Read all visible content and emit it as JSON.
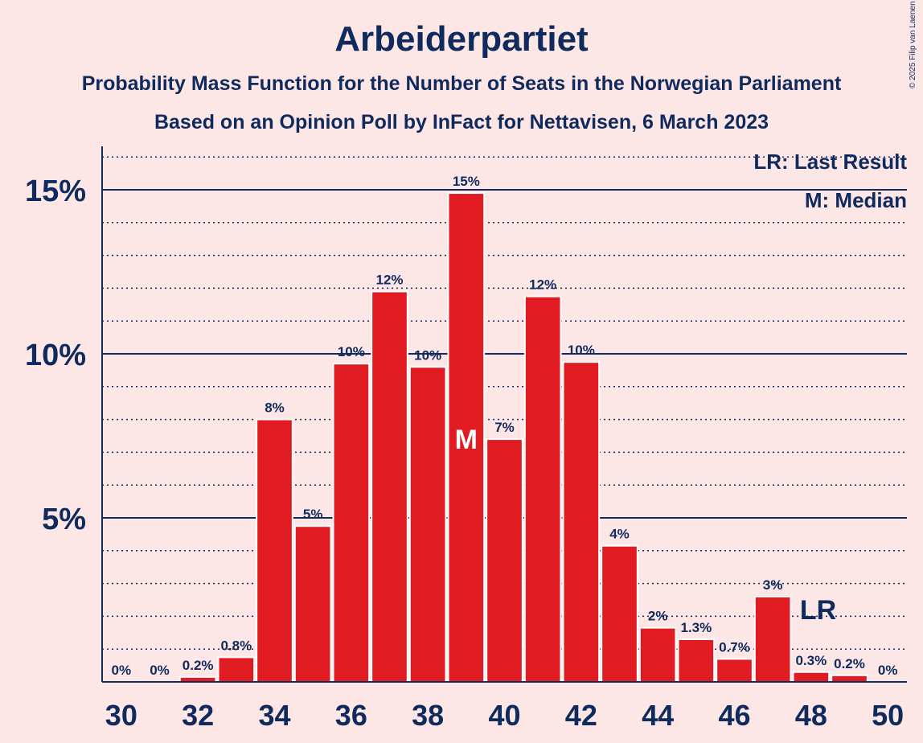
{
  "title": "Arbeiderpartiet",
  "subtitle": "Probability Mass Function for the Number of Seats in the Norwegian Parliament",
  "subtitle2": "Based on an Opinion Poll by InFact for Nettavisen, 6 March 2023",
  "copyright": "© 2025 Filip van Laenen",
  "legend": {
    "last_result": "LR: Last Result",
    "median": "M: Median"
  },
  "colors": {
    "background": "#fde6e6",
    "bar": "#e01b22",
    "text": "#0f2a5c"
  },
  "chart_data": {
    "type": "bar",
    "title": "Arbeiderpartiet",
    "x": [
      30,
      31,
      32,
      33,
      34,
      35,
      36,
      37,
      38,
      39,
      40,
      41,
      42,
      43,
      44,
      45,
      46,
      47,
      48,
      49,
      50
    ],
    "values": [
      0,
      0,
      0.15,
      0.75,
      8.0,
      4.75,
      9.7,
      11.9,
      9.6,
      14.9,
      7.4,
      11.75,
      9.75,
      4.15,
      1.65,
      1.3,
      0.7,
      2.6,
      0.3,
      0.2,
      0
    ],
    "labels": [
      "0%",
      "0%",
      "0.2%",
      "0.8%",
      "8%",
      "5%",
      "10%",
      "12%",
      "10%",
      "15%",
      "7%",
      "12%",
      "10%",
      "4%",
      "2%",
      "1.3%",
      "0.7%",
      "3%",
      "0.3%",
      "0.2%",
      "0%"
    ],
    "x_tick_labels": [
      "30",
      "32",
      "34",
      "36",
      "38",
      "40",
      "42",
      "44",
      "46",
      "48",
      "50"
    ],
    "y_ticks": [
      {
        "value": 5,
        "label": "5%"
      },
      {
        "value": 10,
        "label": "10%"
      },
      {
        "value": 15,
        "label": "15%"
      }
    ],
    "ylim": [
      0,
      16.5
    ],
    "grid": "dotted every 1%, solid every 5%",
    "median": {
      "x": 39,
      "label": "M"
    },
    "last_result": {
      "x": 48,
      "label": "LR"
    }
  }
}
